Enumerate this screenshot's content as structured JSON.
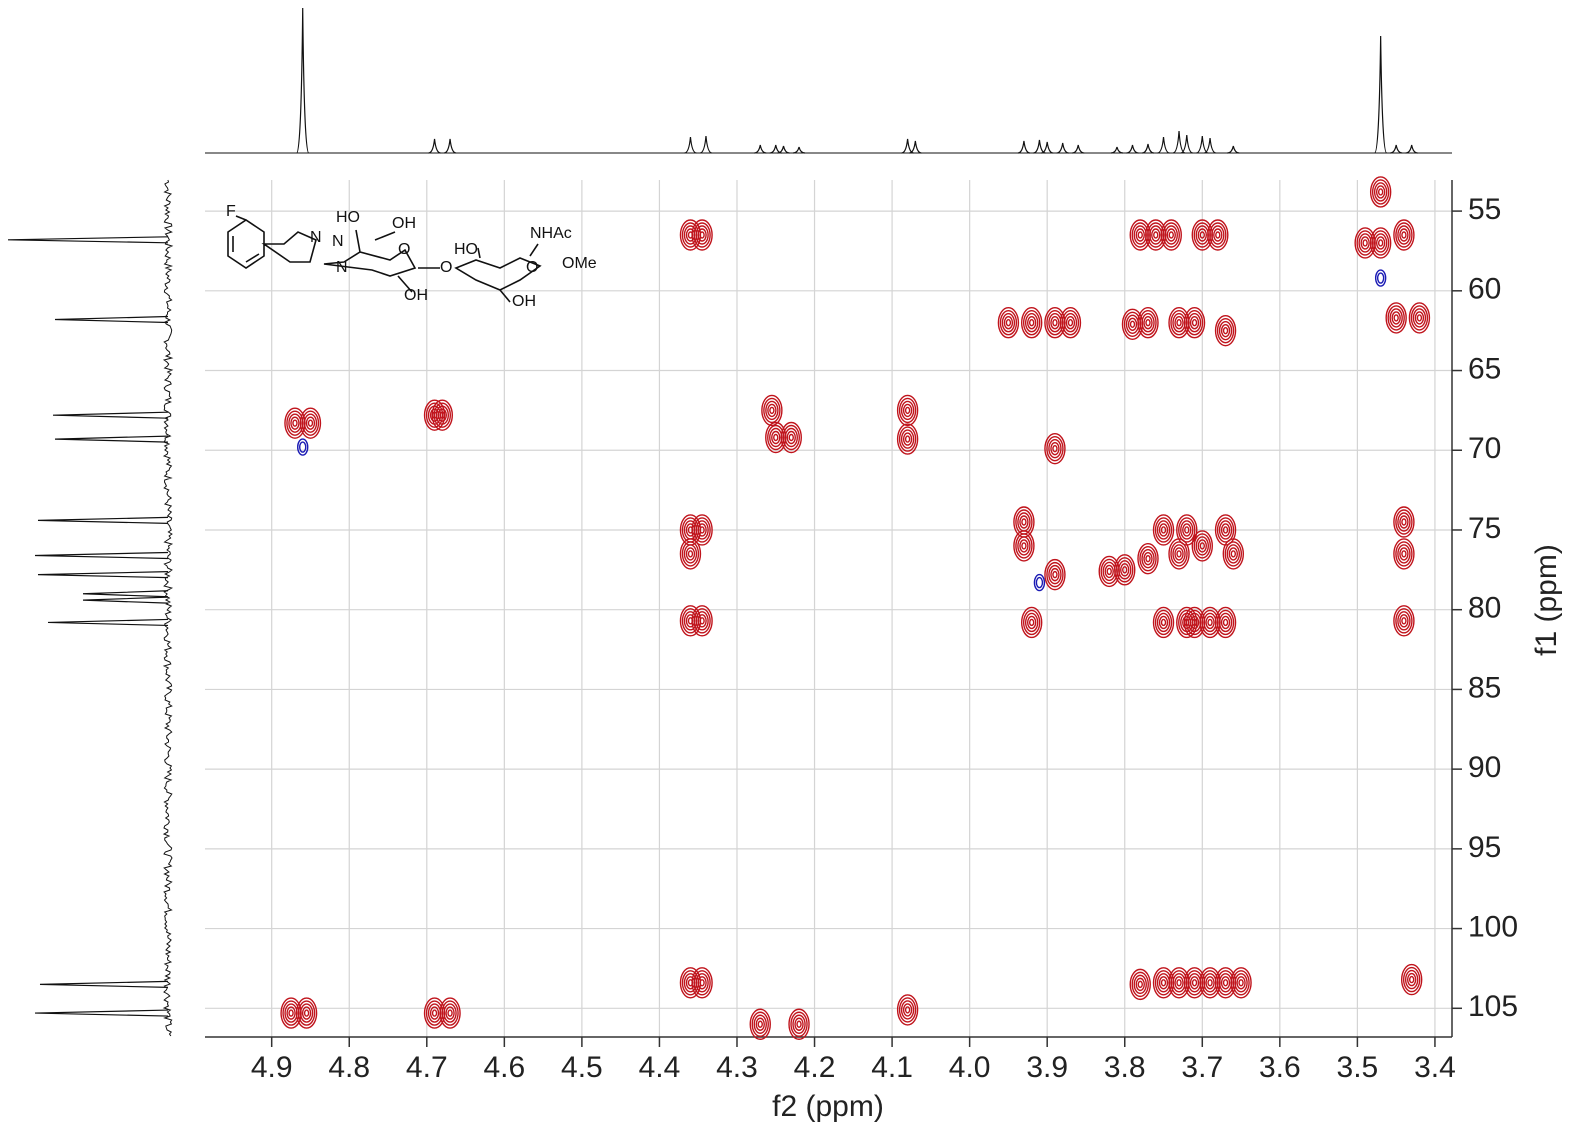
{
  "chart_data": {
    "type": "hsqc",
    "x_label": "f2 (ppm)",
    "y_label": "f1 (ppm)",
    "xlim": [
      4.986,
      3.378
    ],
    "ylim": [
      53.05,
      106.8
    ],
    "xticks": [
      4.9,
      4.8,
      4.7,
      4.6,
      4.5,
      4.4,
      4.3,
      4.2,
      4.1,
      {
        "value": 4,
        "label": "4.0"
      },
      3.9,
      3.8,
      3.7,
      3.6,
      3.5,
      3.4
    ],
    "yticks": [
      55,
      60,
      65,
      70,
      75,
      80,
      85,
      90,
      95,
      100,
      105
    ],
    "grid": true,
    "structure_labels": [
      "F",
      "HO",
      "OH",
      "N",
      "N",
      "N",
      "O",
      "HO",
      "NHAc",
      "O",
      "OMe",
      "OH",
      "OH",
      "O"
    ],
    "series": [
      {
        "color": "#c0141c",
        "x": [
          4.875,
          4.855,
          4.69,
          4.67,
          4.87,
          4.85,
          4.69,
          4.68,
          4.36,
          4.345,
          4.36,
          4.345,
          4.36,
          4.36,
          4.345,
          4.36,
          4.345,
          4.27,
          4.22,
          4.25,
          4.23,
          4.255,
          4.08,
          4.08,
          4.08,
          3.95,
          3.92,
          3.89,
          3.87,
          3.89,
          3.93,
          3.89,
          3.93,
          3.92,
          3.79,
          3.77,
          3.73,
          3.71,
          3.67,
          3.78,
          3.76,
          3.74,
          3.7,
          3.68,
          3.82,
          3.8,
          3.77,
          3.75,
          3.73,
          3.72,
          3.7,
          3.67,
          3.66,
          3.75,
          3.72,
          3.71,
          3.69,
          3.67,
          3.78,
          3.75,
          3.73,
          3.71,
          3.69,
          3.67,
          3.65,
          3.47,
          3.49,
          3.47,
          3.44,
          3.45,
          3.42,
          3.44,
          3.44,
          3.44,
          3.43
        ],
        "values": [
          105.3,
          105.3,
          105.3,
          105.3,
          68.3,
          68.3,
          67.8,
          67.8,
          56.5,
          56.5,
          75,
          75,
          76.5,
          80.7,
          80.7,
          103.4,
          103.4,
          106,
          106,
          69.2,
          69.2,
          67.5,
          69.3,
          67.5,
          105.1,
          62,
          62,
          62,
          62,
          69.9,
          76,
          77.8,
          74.5,
          80.8,
          62.1,
          62,
          62,
          62,
          62.5,
          56.5,
          56.5,
          56.5,
          56.5,
          56.5,
          77.6,
          77.5,
          76.8,
          75,
          76.5,
          75,
          76,
          75,
          76.5,
          80.8,
          80.8,
          80.8,
          80.8,
          80.8,
          103.5,
          103.4,
          103.4,
          103.4,
          103.4,
          103.4,
          103.4,
          53.8,
          57,
          57,
          56.5,
          61.7,
          61.7,
          74.5,
          76.5,
          80.7,
          103.2
        ]
      },
      {
        "color": "#1a1ab4",
        "x": [
          4.86,
          3.47,
          3.91
        ],
        "values": [
          69.8,
          59.2,
          78.3
        ]
      }
    ],
    "x_projection": {
      "color": "#111111",
      "x": [
        4.86,
        4.69,
        4.67,
        4.36,
        4.34,
        4.27,
        4.25,
        4.24,
        4.22,
        4.08,
        4.07,
        3.93,
        3.91,
        3.9,
        3.88,
        3.86,
        3.81,
        3.79,
        3.77,
        3.75,
        3.73,
        3.72,
        3.7,
        3.69,
        3.66,
        3.47,
        3.45,
        3.43
      ],
      "values": [
        145,
        14,
        14,
        16,
        17,
        8,
        8,
        7,
        6,
        14,
        12,
        12,
        13,
        11,
        10,
        8,
        6,
        8,
        9,
        16,
        22,
        18,
        17,
        15,
        7,
        117,
        8,
        8
      ]
    },
    "y_projection": {
      "color": "#111111",
      "y": [
        56.8,
        61.8,
        67.8,
        69.3,
        74.4,
        76.6,
        77.8,
        79.0,
        79.4,
        80.8,
        103.5,
        105.3
      ],
      "values": [
        160,
        113,
        115,
        113,
        130,
        133,
        130,
        85,
        85,
        120,
        128,
        133
      ]
    }
  }
}
